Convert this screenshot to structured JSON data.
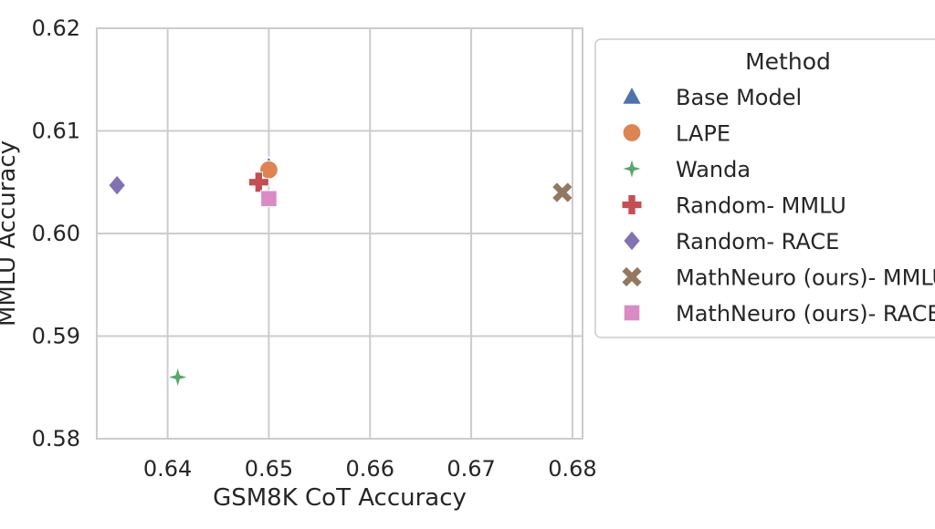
{
  "chart_data": {
    "type": "scatter",
    "title": "",
    "xlabel": "GSM8K CoT Accuracy",
    "ylabel": "MMLU Accuracy",
    "xlim": [
      0.633,
      0.681
    ],
    "ylim": [
      0.58,
      0.62
    ],
    "xticks": [
      "0.64",
      "0.65",
      "0.66",
      "0.67",
      "0.68"
    ],
    "yticks": [
      "0.58",
      "0.59",
      "0.60",
      "0.61",
      "0.62"
    ],
    "grid": true,
    "legend_title": "Method",
    "legend_position": "right, outside plot",
    "series": [
      {
        "name": "Base Model",
        "marker": "triangle",
        "color": "#4C72B0",
        "x": 0.65,
        "y": 0.6065
      },
      {
        "name": "LAPE",
        "marker": "circle",
        "color": "#DD8452",
        "x": 0.65,
        "y": 0.6062
      },
      {
        "name": "Wanda",
        "marker": "star4",
        "color": "#55A868",
        "x": 0.641,
        "y": 0.586
      },
      {
        "name": "Random- MMLU",
        "marker": "plus",
        "color": "#C44E52",
        "x": 0.649,
        "y": 0.605
      },
      {
        "name": "Random- RACE",
        "marker": "diamond",
        "color": "#8172B3",
        "x": 0.635,
        "y": 0.6047
      },
      {
        "name": "MathNeuro (ours)- MMLU",
        "marker": "x",
        "color": "#937860",
        "x": 0.679,
        "y": 0.604
      },
      {
        "name": "MathNeuro (ours)- RACE",
        "marker": "square",
        "color": "#DA8BC3",
        "x": 0.65,
        "y": 0.6034
      }
    ]
  }
}
